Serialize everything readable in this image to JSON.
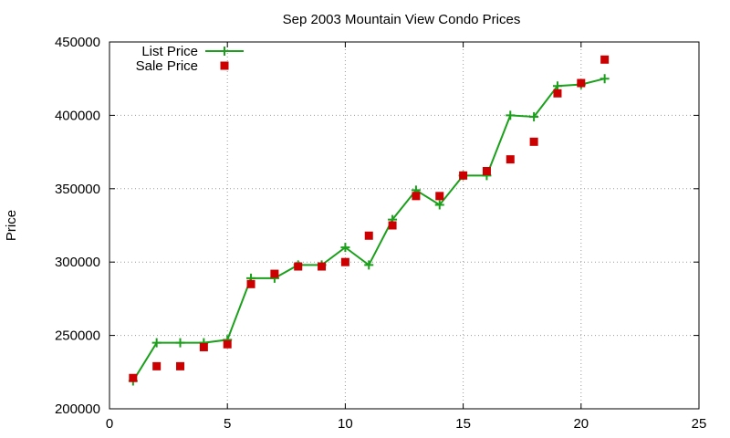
{
  "chart_data": {
    "type": "line",
    "title": "Sep 2003 Mountain View Condo Prices",
    "xlabel": "",
    "ylabel": "Price",
    "xlim": [
      0,
      25
    ],
    "ylim": [
      200000,
      450000
    ],
    "x_ticks": [
      0,
      5,
      10,
      15,
      20,
      25
    ],
    "y_ticks": [
      200000,
      250000,
      300000,
      350000,
      400000,
      450000
    ],
    "grid": true,
    "legend_position": "top-left",
    "series": [
      {
        "name": "List Price",
        "style": "line-with-plus-markers",
        "color": "#1aa01a",
        "x": [
          1,
          2,
          3,
          4,
          5,
          6,
          7,
          8,
          9,
          10,
          11,
          12,
          13,
          14,
          15,
          16,
          17,
          18,
          19,
          20,
          21
        ],
        "values": [
          219000,
          245000,
          245000,
          245000,
          247000,
          289000,
          289000,
          298000,
          298000,
          310000,
          298000,
          329000,
          349000,
          339000,
          359000,
          359000,
          400000,
          399000,
          420000,
          421000,
          425000
        ]
      },
      {
        "name": "Sale Price",
        "style": "square-markers",
        "color": "#cc0000",
        "x": [
          1,
          2,
          3,
          4,
          5,
          6,
          7,
          8,
          9,
          10,
          11,
          12,
          13,
          14,
          15,
          16,
          17,
          18,
          19,
          20,
          21
        ],
        "values": [
          221000,
          229000,
          229000,
          242000,
          244000,
          285000,
          292000,
          297000,
          297000,
          300000,
          318000,
          325000,
          345000,
          345000,
          359000,
          362000,
          370000,
          382000,
          415000,
          422000,
          438000
        ]
      }
    ]
  }
}
